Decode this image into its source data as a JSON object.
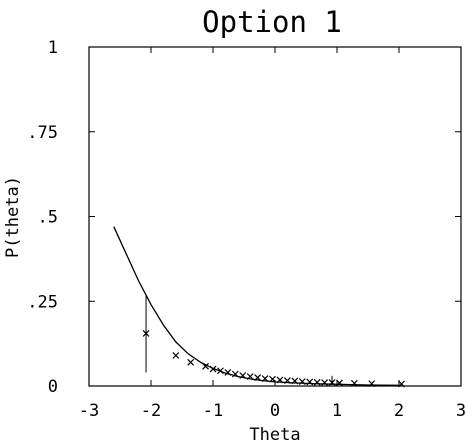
{
  "chart_data": {
    "type": "scatter",
    "title": "Option 1",
    "xlabel": "Theta",
    "ylabel": "P(theta)",
    "xlim": [
      -3,
      3
    ],
    "ylim": [
      0,
      1
    ],
    "xticks": [
      -3,
      -2,
      -1,
      0,
      1,
      2,
      3
    ],
    "xtick_labels": [
      "-3",
      "-2",
      "-1",
      "0",
      "1",
      "2",
      "3"
    ],
    "yticks": [
      0,
      0.25,
      0.5,
      0.75,
      1
    ],
    "ytick_labels": [
      "0",
      ".25",
      ".5",
      ".75",
      "1"
    ],
    "grid": false,
    "curve": {
      "x": [
        -2.6,
        -2.4,
        -2.2,
        -2.0,
        -1.8,
        -1.6,
        -1.4,
        -1.2,
        -1.0,
        -0.8,
        -0.6,
        -0.4,
        -0.2,
        0.0,
        0.3,
        0.6,
        1.0,
        1.5,
        2.0
      ],
      "y": [
        0.47,
        0.39,
        0.31,
        0.24,
        0.18,
        0.13,
        0.095,
        0.07,
        0.052,
        0.038,
        0.028,
        0.021,
        0.016,
        0.012,
        0.009,
        0.007,
        0.005,
        0.003,
        0.002
      ]
    },
    "points": {
      "x": [
        -2.08,
        -1.6,
        -1.36,
        -1.12,
        -1.0,
        -0.88,
        -0.76,
        -0.64,
        -0.52,
        -0.4,
        -0.28,
        -0.16,
        -0.04,
        0.08,
        0.2,
        0.32,
        0.44,
        0.56,
        0.68,
        0.8,
        0.92,
        1.04,
        1.28,
        1.56,
        2.04
      ],
      "y": [
        0.155,
        0.09,
        0.07,
        0.058,
        0.05,
        0.045,
        0.04,
        0.035,
        0.031,
        0.028,
        0.025,
        0.022,
        0.02,
        0.018,
        0.016,
        0.015,
        0.013,
        0.012,
        0.011,
        0.01,
        0.01,
        0.009,
        0.008,
        0.007,
        0.006
      ]
    },
    "error_bars": [
      {
        "x": -2.08,
        "low": 0.04,
        "high": 0.265
      },
      {
        "x": 0.92,
        "low": 0.003,
        "high": 0.03
      }
    ]
  }
}
